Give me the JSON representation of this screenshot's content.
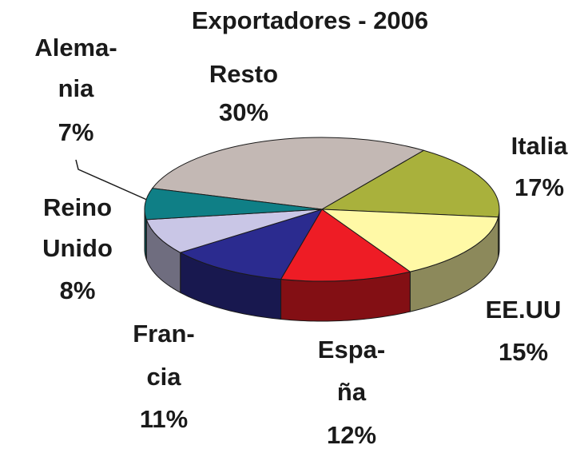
{
  "chart_data": {
    "type": "pie3d",
    "title": "Exportadores - 2006",
    "categories": [
      [
        "Resto"
      ],
      [
        "Italia"
      ],
      [
        "EE.UU"
      ],
      [
        "Espa-",
        "ña"
      ],
      [
        "Fran-",
        "cia"
      ],
      [
        "Reino",
        "Unido"
      ],
      [
        "Alema-",
        "nia"
      ]
    ],
    "values": [
      30,
      17,
      15,
      12,
      11,
      8,
      7
    ],
    "value_labels": [
      "30%",
      "17%",
      "15%",
      "12%",
      "11%",
      "8%",
      "7%"
    ],
    "colors": [
      "#c3b8b4",
      "#a9b13c",
      "#fff9a6",
      "#ee1c25",
      "#2b2b8f",
      "#c9c6e6",
      "#0f7f86"
    ]
  }
}
